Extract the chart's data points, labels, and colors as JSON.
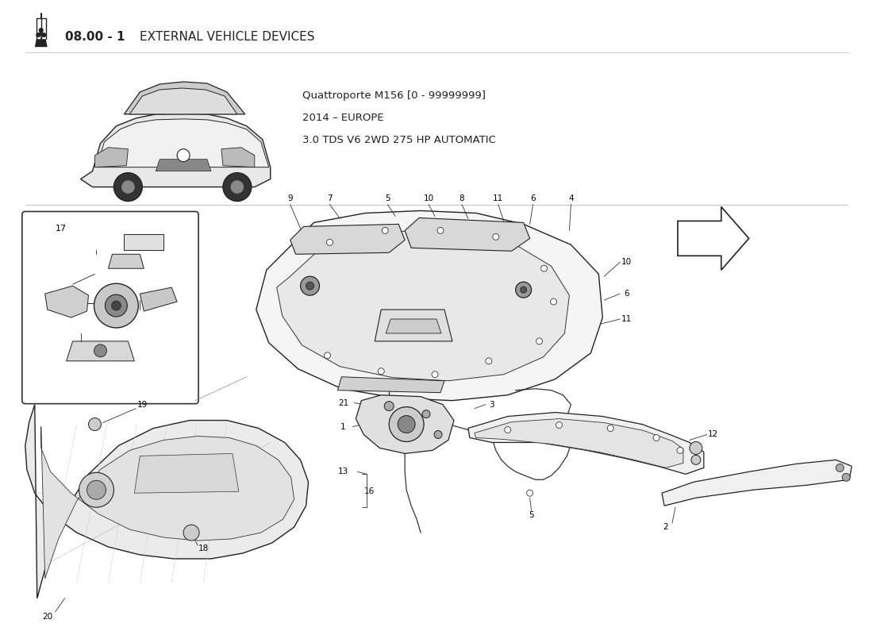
{
  "bg": "#ffffff",
  "title_bold": "08.00 - 1",
  "title_rest": " EXTERNAL VEHICLE DEVICES",
  "sub1": "Quattroporte M156 [0 - 99999999]",
  "sub2": "2014 – EUROPE",
  "sub3": "3.0 TDS V6 2WD 275 HP AUTOMATIC",
  "lk": "#333333",
  "dk": "#222222",
  "lc": "#888888",
  "fc_light": "#f0f0f0",
  "fc_mid": "#d8d8d8",
  "fc_dark": "#aaaaaa"
}
